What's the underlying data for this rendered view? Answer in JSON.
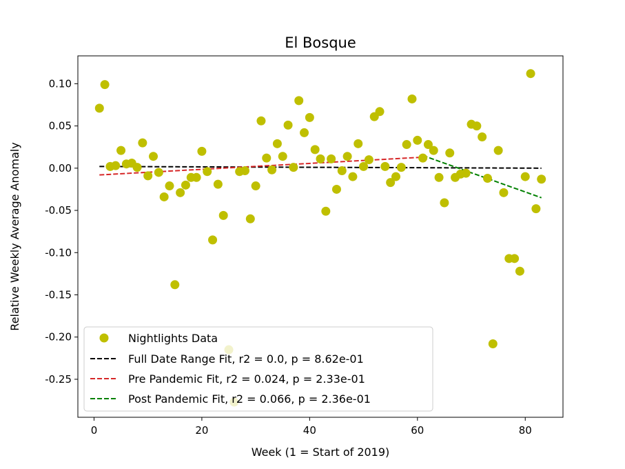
{
  "chart_data": {
    "type": "scatter",
    "title": "El Bosque",
    "xlabel": "Week (1 = Start of 2019)",
    "ylabel": "Relative Weekly Average Anomaly",
    "xlim": [
      -3,
      87
    ],
    "ylim": [
      -0.295,
      0.133
    ],
    "xticks": [
      0,
      20,
      40,
      60,
      80
    ],
    "yticks": [
      0.1,
      0.05,
      0.0,
      -0.05,
      -0.1,
      -0.15,
      -0.2,
      -0.25
    ],
    "grid": false,
    "legend_position": "lower-left",
    "colors": {
      "points": "#bfbf00",
      "full_fit": "#000000",
      "pre_fit": "#d62728",
      "post_fit": "#008000"
    },
    "series": [
      {
        "name": "Nightlights Data",
        "kind": "points",
        "x": [
          1,
          2,
          3,
          4,
          5,
          6,
          7,
          8,
          9,
          10,
          11,
          12,
          13,
          14,
          15,
          16,
          17,
          18,
          19,
          20,
          21,
          22,
          23,
          24,
          25,
          26,
          27,
          28,
          29,
          30,
          31,
          32,
          33,
          34,
          35,
          36,
          37,
          38,
          39,
          40,
          41,
          42,
          43,
          44,
          45,
          46,
          47,
          48,
          49,
          50,
          51,
          52,
          53,
          54,
          55,
          56,
          57,
          58,
          59,
          60,
          61,
          62,
          63,
          64,
          65,
          66,
          67,
          68,
          69,
          70,
          71,
          72,
          73,
          74,
          75,
          76,
          77,
          78,
          79,
          80,
          81,
          82,
          83
        ],
        "y": [
          0.071,
          0.099,
          0.002,
          0.003,
          0.021,
          0.005,
          0.006,
          0.001,
          0.03,
          -0.009,
          0.014,
          -0.005,
          -0.034,
          -0.021,
          -0.138,
          -0.029,
          -0.02,
          -0.011,
          -0.011,
          0.02,
          -0.004,
          -0.085,
          -0.019,
          -0.056,
          -0.215,
          -0.277,
          -0.004,
          -0.003,
          -0.06,
          -0.021,
          0.056,
          0.012,
          -0.002,
          0.029,
          0.014,
          0.051,
          0.001,
          0.08,
          0.042,
          0.06,
          0.022,
          0.011,
          -0.051,
          0.011,
          -0.025,
          -0.003,
          0.014,
          -0.01,
          0.029,
          0.002,
          0.01,
          0.061,
          0.067,
          0.002,
          -0.017,
          -0.01,
          0.001,
          0.028,
          0.082,
          0.033,
          0.012,
          0.028,
          0.021,
          -0.011,
          -0.041,
          0.018,
          -0.011,
          -0.007,
          -0.006,
          0.052,
          0.05,
          0.037,
          -0.012,
          -0.208,
          0.021,
          -0.029,
          -0.107,
          -0.107,
          -0.122,
          -0.01,
          0.112,
          -0.048,
          -0.013
        ]
      },
      {
        "name": "Full Date Range Fit, r2 = 0.0, p = 8.62e-01",
        "kind": "line",
        "x": [
          1,
          83
        ],
        "y": [
          0.002,
          0.0
        ]
      },
      {
        "name": "Pre Pandemic Fit, r2 = 0.024, p = 2.33e-01",
        "kind": "line",
        "x": [
          1,
          61
        ],
        "y": [
          -0.008,
          0.013
        ]
      },
      {
        "name": "Post Pandemic Fit, r2 = 0.066, p = 2.36e-01",
        "kind": "line",
        "x": [
          61,
          83
        ],
        "y": [
          0.015,
          -0.035
        ]
      }
    ]
  }
}
